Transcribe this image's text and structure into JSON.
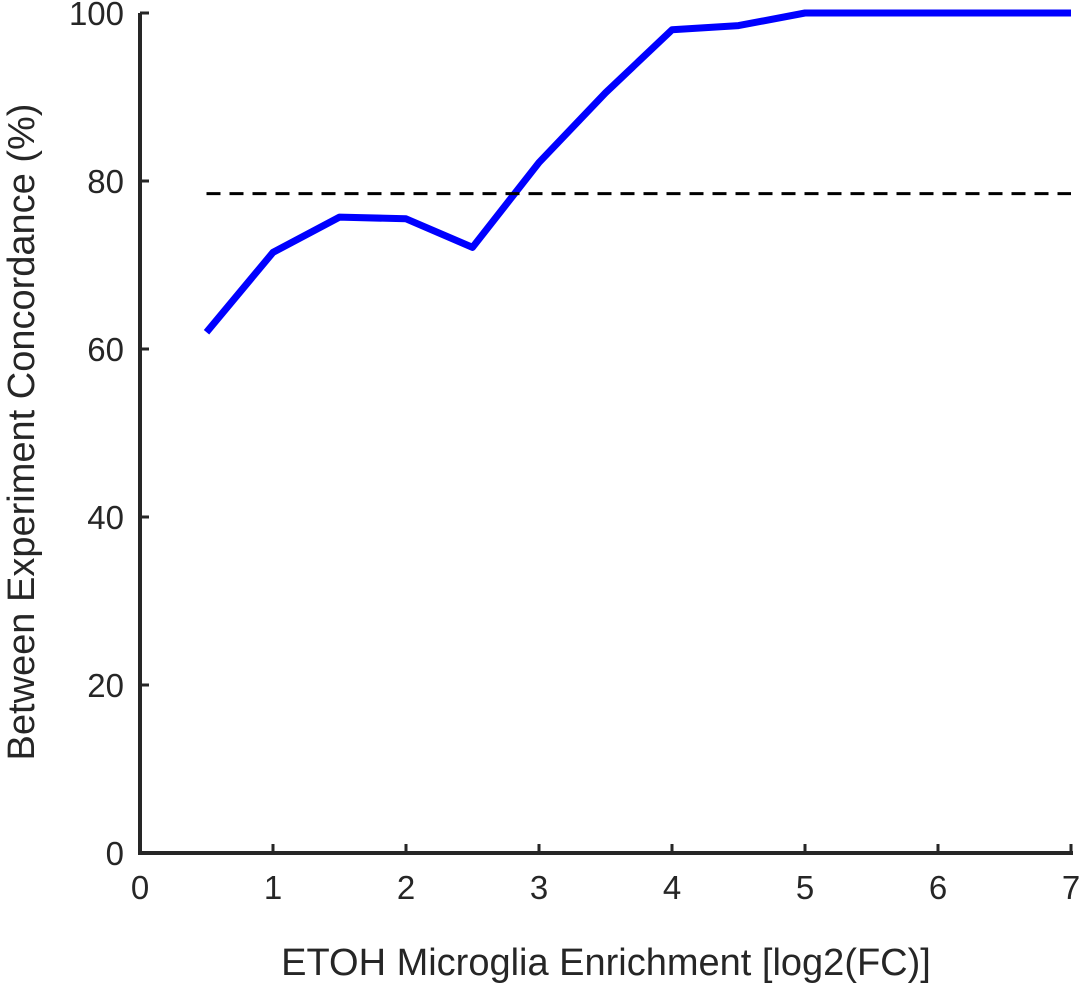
{
  "chart_data": {
    "type": "line",
    "xlabel": "ETOH Microglia Enrichment [log2(FC)]",
    "ylabel": "Between Experiment Concordance (%)",
    "xlim": [
      0,
      7
    ],
    "ylim": [
      0,
      100
    ],
    "xticks": [
      "0",
      "1",
      "2",
      "3",
      "4",
      "5",
      "6",
      "7"
    ],
    "yticks": [
      "0",
      "20",
      "40",
      "60",
      "80",
      "100"
    ],
    "grid": false,
    "series": [
      {
        "color": "#0000ff",
        "style": "solid",
        "x": [
          0.5,
          1.0,
          1.5,
          2.0,
          2.5,
          3.0,
          3.5,
          4.0,
          4.5,
          5.0,
          5.5,
          6.0,
          6.5,
          7.0
        ],
        "y": [
          62.0,
          71.5,
          75.7,
          75.5,
          72.1,
          82.2,
          90.5,
          98.0,
          98.5,
          100,
          100,
          100,
          100,
          100
        ]
      },
      {
        "color": "#000000",
        "style": "dashed",
        "x": [
          0.5,
          7.0
        ],
        "y": [
          78.5,
          78.5
        ]
      }
    ]
  }
}
